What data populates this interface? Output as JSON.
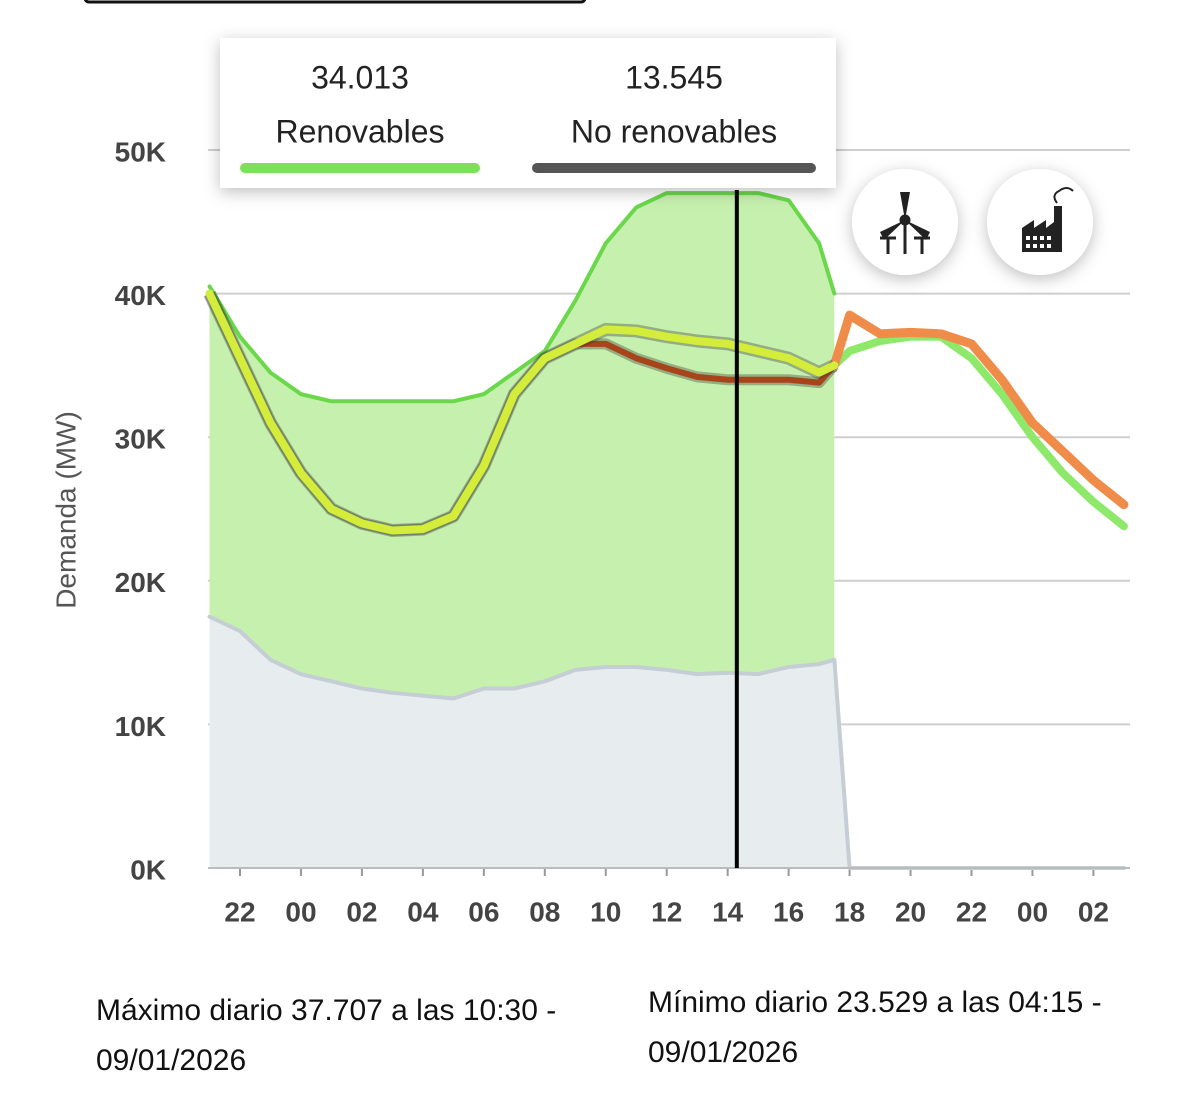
{
  "chart_data": {
    "type": "line",
    "y_label": "Demanda (MW)",
    "x": [
      21,
      22,
      23,
      24,
      25,
      26,
      27,
      28,
      29,
      30,
      31,
      32,
      33,
      34,
      35,
      36,
      37,
      38,
      39,
      40,
      41,
      41.5,
      42,
      43,
      44,
      45,
      46,
      47,
      48,
      49,
      50,
      51
    ],
    "xlim": [
      20.95,
      51.2
    ],
    "xticks": [
      {
        "value": 22,
        "label": "22"
      },
      {
        "value": 24,
        "label": "00"
      },
      {
        "value": 26,
        "label": "02"
      },
      {
        "value": 28,
        "label": "04"
      },
      {
        "value": 30,
        "label": "06"
      },
      {
        "value": 32,
        "label": "08"
      },
      {
        "value": 34,
        "label": "10"
      },
      {
        "value": 36,
        "label": "12"
      },
      {
        "value": 38,
        "label": "14"
      },
      {
        "value": 40,
        "label": "16"
      },
      {
        "value": 42,
        "label": "18"
      },
      {
        "value": 44,
        "label": "20"
      },
      {
        "value": 46,
        "label": "22"
      },
      {
        "value": 48,
        "label": "00"
      },
      {
        "value": 50,
        "label": "02"
      }
    ],
    "ylim": [
      0,
      50000
    ],
    "yticks": [
      {
        "value": 0,
        "label": "0K"
      },
      {
        "value": 10000,
        "label": "10K"
      },
      {
        "value": 20000,
        "label": "20K"
      },
      {
        "value": 30000,
        "label": "30K"
      },
      {
        "value": 40000,
        "label": "40K"
      },
      {
        "value": 50000,
        "label": "50K"
      }
    ],
    "grid": true,
    "series": [
      {
        "color": "#6ad84a",
        "fill": "#c6f0ad",
        "values": [
          40500,
          37000,
          34500,
          33000,
          32500,
          32500,
          32500,
          32500,
          32500,
          33000,
          34500,
          36000,
          39500,
          43500,
          46000,
          47000,
          47000,
          47000,
          47000,
          46500,
          43500,
          40000,
          null,
          null,
          null,
          null,
          null,
          null,
          null,
          null,
          null,
          null
        ]
      },
      {
        "color": "#c5cdd5",
        "fill": "#e7ecef",
        "values": [
          17500,
          16500,
          14500,
          13500,
          13000,
          12500,
          12200,
          12000,
          11800,
          12500,
          12500,
          13000,
          13800,
          14000,
          14000,
          13800,
          13500,
          13600,
          13500,
          14000,
          14200,
          14500,
          0,
          0,
          0,
          0,
          0,
          0,
          0,
          0,
          0,
          0
        ]
      },
      {
        "color": "#8ee86a",
        "values": [
          null,
          null,
          null,
          null,
          null,
          null,
          null,
          null,
          null,
          null,
          null,
          null,
          null,
          null,
          null,
          null,
          null,
          null,
          null,
          null,
          null,
          35000,
          36000,
          36700,
          37000,
          37000,
          35500,
          33000,
          30000,
          27500,
          25500,
          23800
        ]
      },
      {
        "color": "#f08c4a",
        "values": [
          null,
          null,
          null,
          null,
          null,
          null,
          null,
          null,
          null,
          null,
          null,
          null,
          null,
          null,
          null,
          null,
          null,
          null,
          null,
          null,
          null,
          35000,
          38500,
          37200,
          37300,
          37200,
          36500,
          34000,
          31000,
          29000,
          27000,
          25300
        ]
      },
      {
        "color": "#a8441a",
        "values": [
          40000,
          35500,
          31000,
          27500,
          25000,
          24000,
          23500,
          23600,
          24500,
          28000,
          33000,
          35500,
          36500,
          36500,
          35500,
          34800,
          34200,
          34000,
          34000,
          34000,
          33800,
          35000,
          null,
          null,
          null,
          null,
          null,
          null,
          null,
          null,
          null,
          null
        ]
      },
      {
        "color": "#d4ec3a",
        "values": [
          40000,
          35500,
          31000,
          27500,
          25000,
          24000,
          23500,
          23600,
          24500,
          28000,
          33000,
          35500,
          36500,
          37500,
          37400,
          37000,
          36700,
          36500,
          36000,
          35500,
          34500,
          35000,
          null,
          null,
          null,
          null,
          null,
          null,
          null,
          null,
          null,
          null
        ]
      }
    ],
    "cursor_x": 38.3,
    "tooltip": [
      {
        "value": "34.013",
        "name": "Renovables",
        "color": "#7ce05a"
      },
      {
        "value": "13.545",
        "name": "No renovables",
        "color": "#555555"
      }
    ]
  },
  "footer": {
    "max": "Máximo diario 37.707 a las 10:30 - 09/01/2026",
    "min": "Mínimo diario 23.529 a las 04:15 - 09/01/2026"
  }
}
